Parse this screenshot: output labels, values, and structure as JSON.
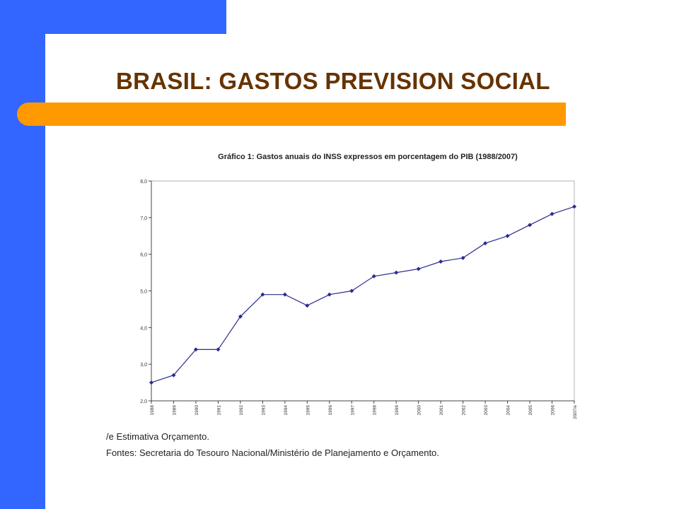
{
  "slide": {
    "title": "BRASIL: GASTOS PREVISION SOCIAL"
  },
  "colors": {
    "blue": "#3366ff",
    "orange": "#ff9900",
    "title_brown": "#663300",
    "series": "#2b2b8f"
  },
  "chart_data": {
    "type": "line",
    "title": "Gráfico 1: Gastos anuais do INSS expressos em porcentagem do PIB (1988/2007)",
    "xlabel": "",
    "ylabel": "",
    "categories": [
      "1988",
      "1989",
      "1990",
      "1991",
      "1992",
      "1993",
      "1994",
      "1995",
      "1996",
      "1997",
      "1998",
      "1999",
      "2000",
      "2001",
      "2002",
      "2003",
      "2004",
      "2005",
      "2006",
      "2007/e"
    ],
    "series": [
      {
        "values": [
          2.5,
          2.7,
          3.4,
          3.4,
          4.3,
          4.9,
          4.9,
          4.6,
          4.9,
          5.0,
          5.4,
          5.5,
          5.6,
          5.8,
          5.9,
          6.3,
          6.5,
          6.8,
          7.1,
          7.3
        ]
      }
    ],
    "ylim": [
      2.0,
      8.0
    ],
    "yticks": [
      "2,0",
      "3,0",
      "4,0",
      "5,0",
      "6,0",
      "7,0",
      "8,0"
    ],
    "grid": false,
    "notes": [
      "/e Estimativa Orçamento.",
      "Fontes: Secretaria do Tesouro Nacional/Ministério de Planejamento e Orçamento."
    ]
  }
}
